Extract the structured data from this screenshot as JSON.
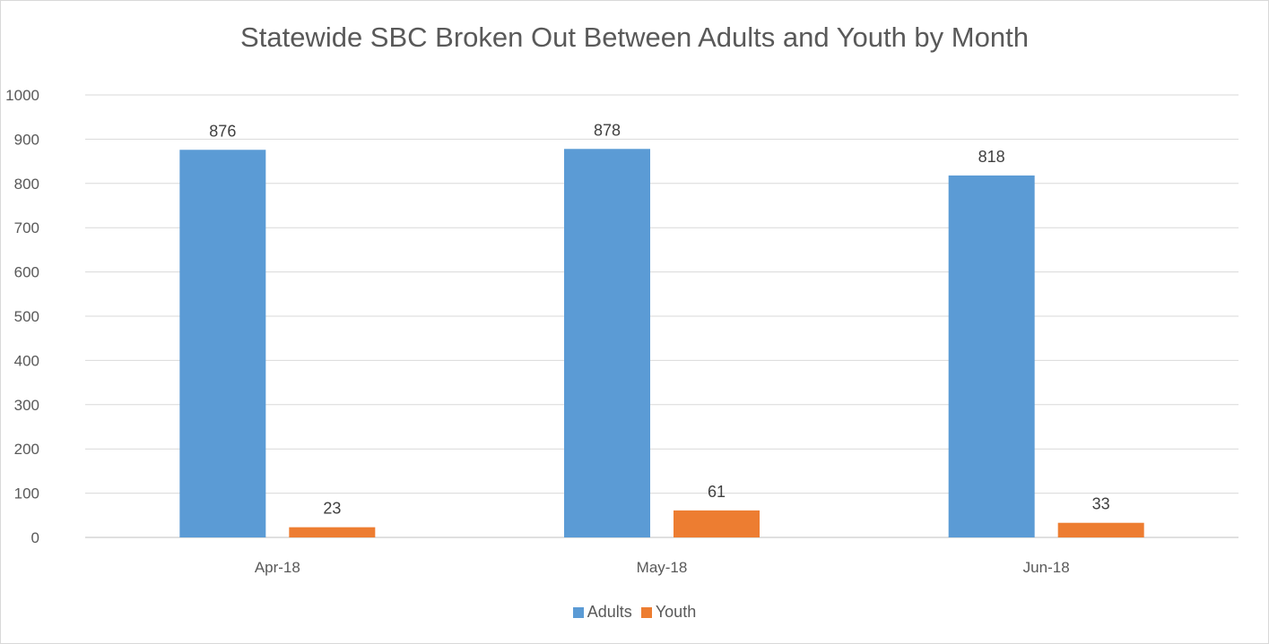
{
  "chart_data": {
    "type": "bar",
    "title": "Statewide SBC Broken Out Between Adults and Youth by Month",
    "categories": [
      "Apr-18",
      "May-18",
      "Jun-18"
    ],
    "series": [
      {
        "name": "Adults",
        "values": [
          876,
          878,
          818
        ],
        "color": "#5b9bd5"
      },
      {
        "name": "Youth",
        "values": [
          23,
          61,
          33
        ],
        "color": "#ed7d31"
      }
    ],
    "ylim": [
      0,
      1000
    ],
    "yticks": [
      "0",
      "100",
      "200",
      "300",
      "400",
      "500",
      "600",
      "700",
      "800",
      "900",
      "1000"
    ],
    "xlabel": "",
    "ylabel": "",
    "grid": true,
    "legend_position": "bottom"
  }
}
